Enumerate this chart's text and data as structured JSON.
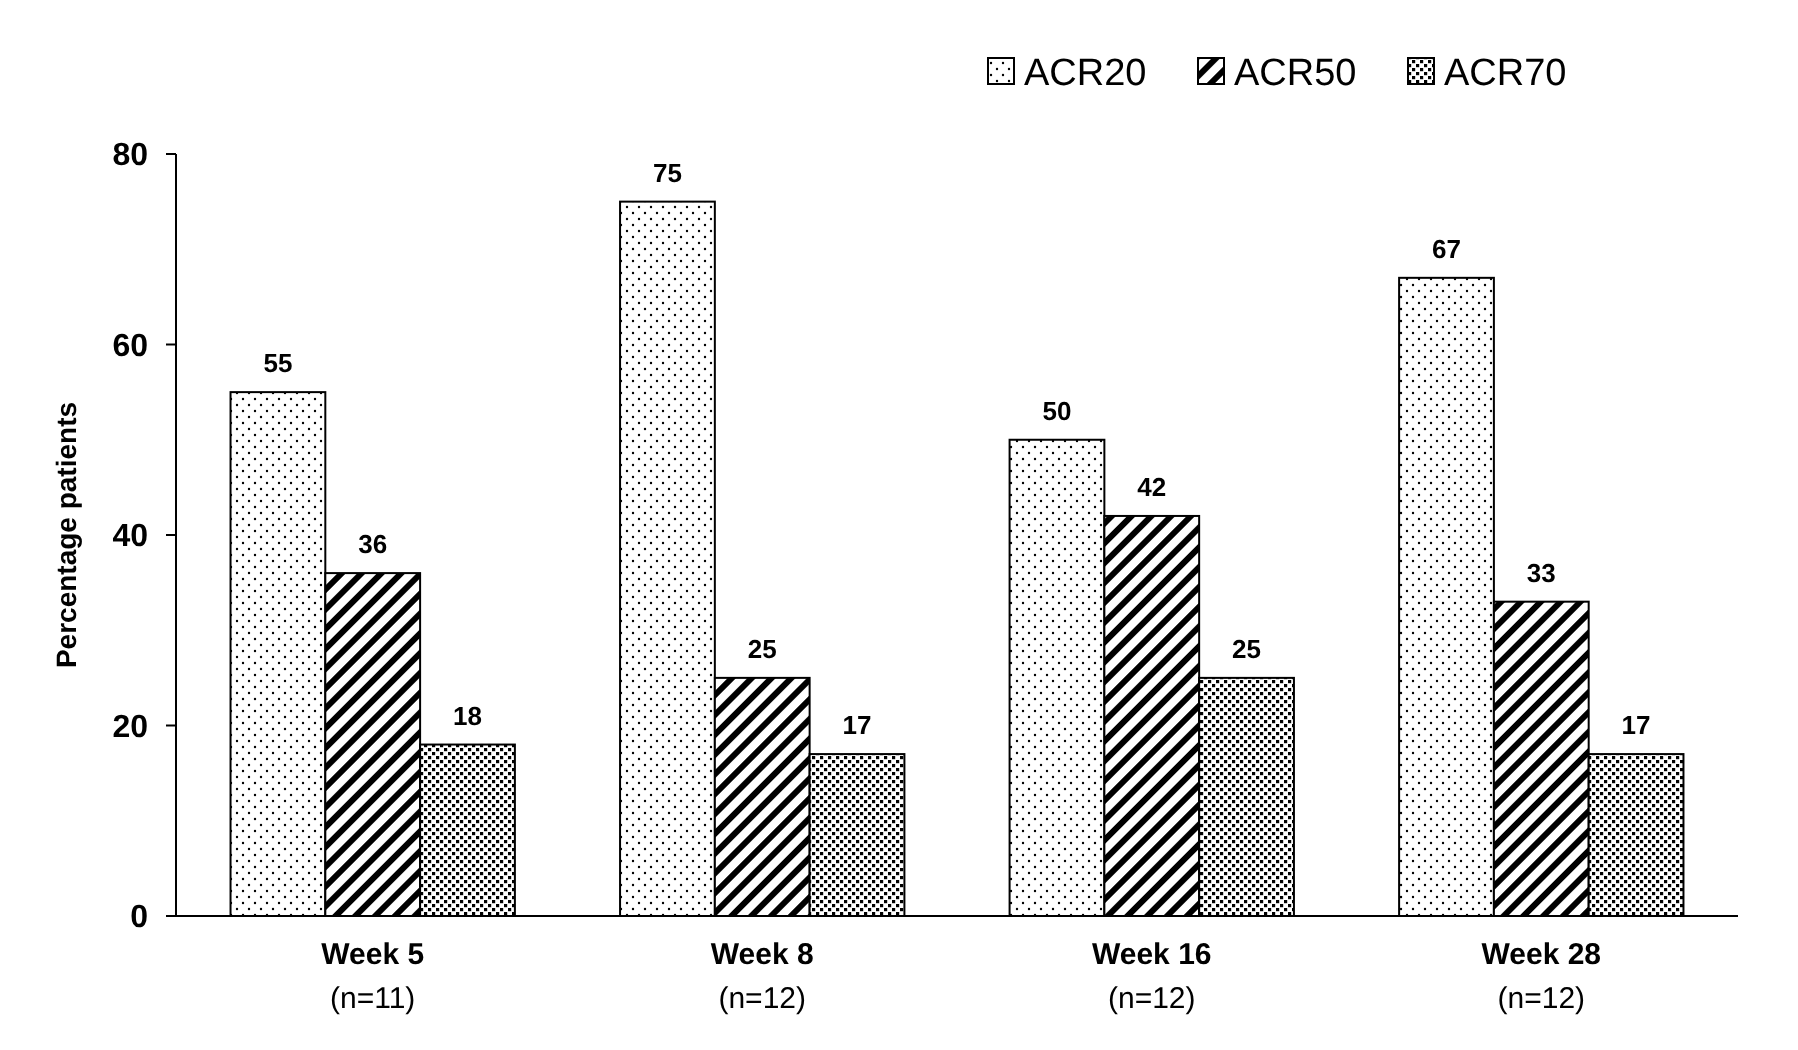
{
  "chart_data": {
    "type": "bar",
    "ylabel": "Percentage patients",
    "categories": [
      "Week 5\n(n=11)",
      "Week 8\n(n=12)",
      "Week 16\n(n=12)",
      "Week 28\n(n=12)"
    ],
    "series": [
      {
        "name": "ACR20",
        "color": "#000000",
        "values": [
          55,
          75,
          50,
          67
        ]
      },
      {
        "name": "ACR50",
        "color": "#000000",
        "values": [
          36,
          25,
          42,
          33
        ]
      },
      {
        "name": "ACR70",
        "color": "#000000",
        "values": [
          18,
          17,
          25,
          17
        ]
      }
    ],
    "ylim": [
      0,
      80
    ],
    "yticks": [
      0,
      20,
      40,
      60,
      80
    ],
    "data_labels": true,
    "legend": "top right",
    "grid": false
  }
}
